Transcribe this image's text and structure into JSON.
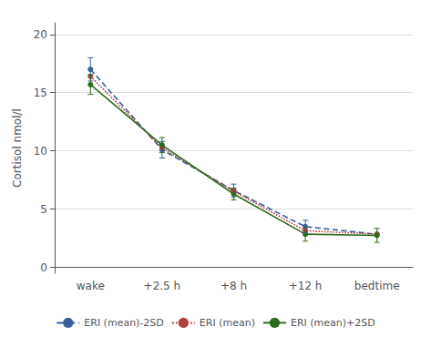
{
  "chart_data": {
    "type": "line",
    "categories": [
      "wake",
      "+2.5 h",
      "+8 h",
      "+12 h",
      "bedtime"
    ],
    "series": [
      {
        "name": "ERI (mean)-2SD",
        "color": "#3a5fa0",
        "line_style": "dashed",
        "marker": "circle",
        "values": [
          17.0,
          10.1,
          6.6,
          3.5,
          2.85
        ],
        "yerr": [
          1.0,
          0.7,
          0.55,
          0.55,
          0.0
        ]
      },
      {
        "name": "ERI (mean)",
        "color": "#b04040",
        "line_style": "dotted",
        "marker": "circle",
        "values": [
          16.4,
          10.25,
          6.55,
          3.15,
          2.85
        ],
        "yerr": [
          0.0,
          0.0,
          0.0,
          0.0,
          0.0
        ]
      },
      {
        "name": "ERI (mean)+2SD",
        "color": "#2e6b1e",
        "line_style": "solid",
        "marker": "circle",
        "values": [
          15.7,
          10.5,
          6.3,
          2.85,
          2.75
        ],
        "yerr": [
          0.85,
          0.65,
          0.5,
          0.6,
          0.6
        ]
      }
    ],
    "ylabel": "Cortisol nmol/l",
    "ylim": [
      -0.5,
      21
    ],
    "yticks": [
      0,
      5,
      10,
      15,
      20
    ],
    "grid": true,
    "legend": "bottom"
  }
}
